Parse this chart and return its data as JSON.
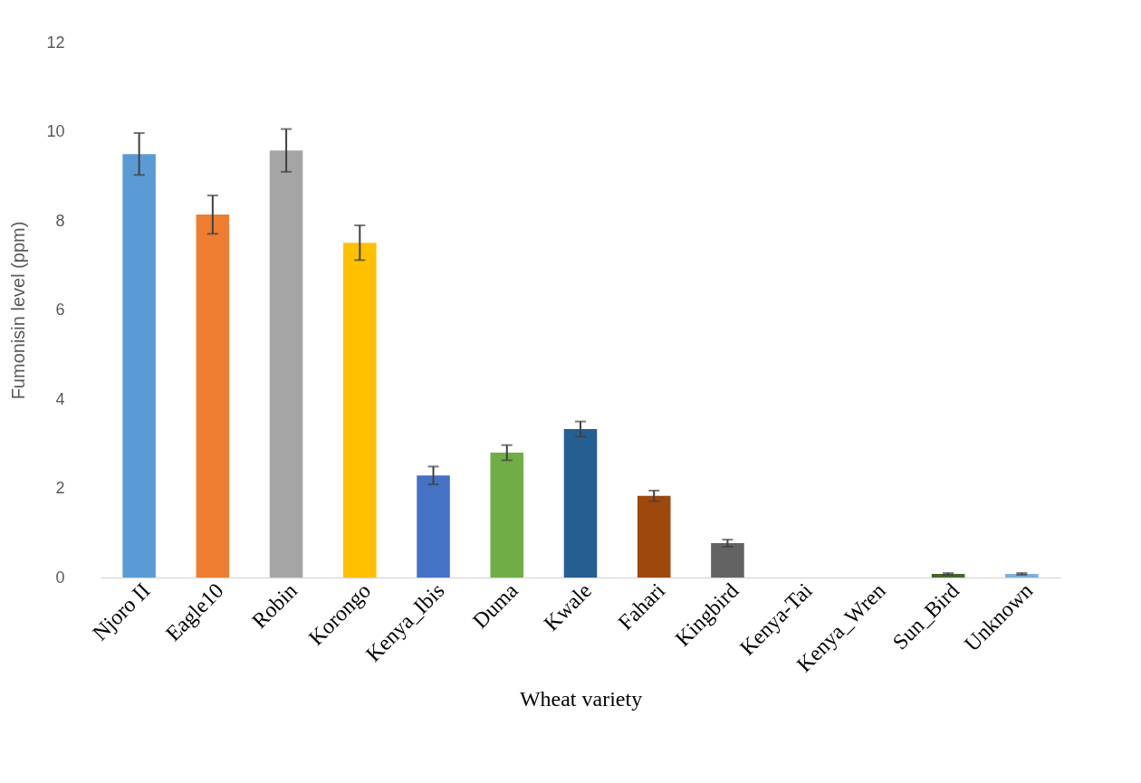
{
  "chart_data": {
    "type": "bar",
    "xlabel": "Wheat variety",
    "ylabel": "Fumonisin level (ppm)",
    "categories": [
      "Njoro II",
      "Eagle10",
      "Robin",
      "Korongo",
      "Kenya_Ibis",
      "Duma",
      "Kwale",
      "Fahari",
      "Kingbird",
      "Kenya-Tai",
      "Kenya_Wren",
      "Sun_Bird",
      "Unknown"
    ],
    "values": [
      9.5,
      8.14,
      9.58,
      7.51,
      2.29,
      2.8,
      3.33,
      1.83,
      0.77,
      0,
      0,
      0.08,
      0.08
    ],
    "errors": [
      0.47,
      0.43,
      0.48,
      0.39,
      0.2,
      0.17,
      0.17,
      0.12,
      0.08,
      null,
      null,
      0.02,
      0.02
    ],
    "colors": [
      "#5b9bd5",
      "#ed7d31",
      "#a5a5a5",
      "#ffc000",
      "#4472c4",
      "#70ad47",
      "#255e91",
      "#9e480e",
      "#636363",
      "#997300",
      "#264478",
      "#43682b",
      "#7cafdd"
    ],
    "ylim": [
      0,
      12
    ],
    "yticks": [
      0,
      2,
      4,
      6,
      8,
      10,
      12
    ],
    "grid": false
  }
}
